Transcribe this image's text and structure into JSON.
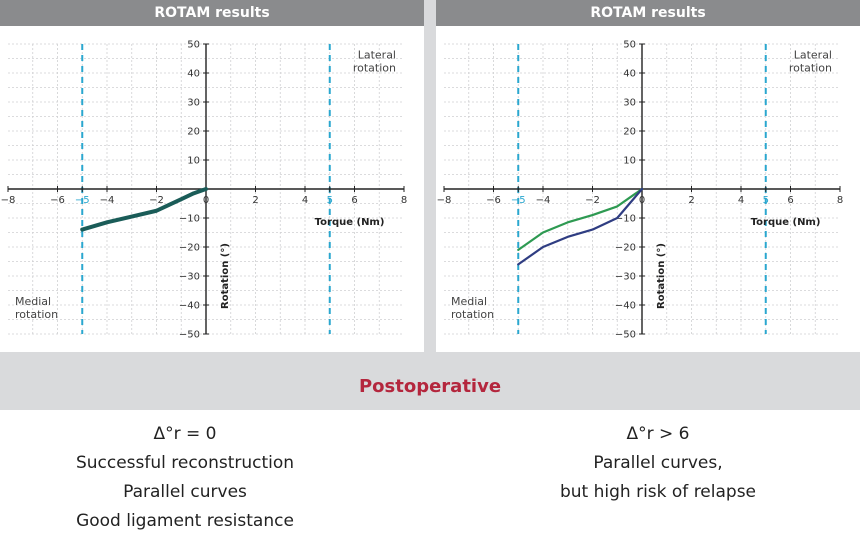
{
  "colors": {
    "header_bg": "#8a8b8d",
    "accent": "#b4263d",
    "curve_teal": "#1a5c58",
    "curve_green": "#2e9a52",
    "curve_navy": "#2f3d82",
    "dashed_line": "#2aa7cf"
  },
  "section_title": "Postoperative",
  "left_caption": {
    "line1": "Δ°r = 0",
    "line2": "Successful reconstruction",
    "line3": "Parallel curves",
    "line4": "Good ligament resistance"
  },
  "right_caption": {
    "line1": "Δ°r > 6",
    "line2": "Parallel curves,",
    "line3": "but high risk of relapse"
  },
  "chart_data": [
    {
      "type": "line",
      "title": "ROTAM results",
      "xlabel": "Torque (Nm)",
      "ylabel": "Rotation (°)",
      "xlim": [
        -8,
        8
      ],
      "ylim": [
        -50,
        50
      ],
      "x_ticks": [
        -8,
        -6,
        -5,
        -4,
        -2,
        0,
        2,
        4,
        5,
        6,
        8
      ],
      "y_ticks": [
        50,
        40,
        30,
        20,
        10,
        -10,
        -20,
        -30,
        -40,
        -50
      ],
      "grid": true,
      "annotations": [
        {
          "text": "Lateral",
          "text2": "rotation",
          "x": 5
        },
        {
          "text": "Medial",
          "text2": "rotation",
          "x": -5
        }
      ],
      "series": [
        {
          "color": "#1a5c58",
          "x": [
            -5,
            -4,
            -3,
            -2,
            -1.5,
            -1,
            -0.5,
            0
          ],
          "y": [
            -14,
            -11.5,
            -9.5,
            -7.5,
            -5.5,
            -3.5,
            -1.5,
            0
          ]
        }
      ]
    },
    {
      "type": "line",
      "title": "ROTAM results",
      "xlabel": "Torque (Nm)",
      "ylabel": "Rotation (°)",
      "xlim": [
        -8,
        8
      ],
      "ylim": [
        -50,
        50
      ],
      "x_ticks": [
        -8,
        -6,
        -5,
        -4,
        -2,
        0,
        2,
        4,
        5,
        6,
        8
      ],
      "y_ticks": [
        50,
        40,
        30,
        20,
        10,
        -10,
        -20,
        -30,
        -40,
        -50
      ],
      "grid": true,
      "annotations": [
        {
          "text": "Lateral",
          "text2": "rotation",
          "x": 5
        },
        {
          "text": "Medial",
          "text2": "rotation",
          "x": -5
        }
      ],
      "series": [
        {
          "color": "#2e9a52",
          "x": [
            -5,
            -4,
            -3,
            -2,
            -1,
            -0.5,
            0
          ],
          "y": [
            -21,
            -15,
            -11.5,
            -9,
            -6,
            -3,
            0
          ]
        },
        {
          "color": "#2f3d82",
          "x": [
            -5,
            -4,
            -3,
            -2,
            -1,
            -0.5,
            0
          ],
          "y": [
            -26,
            -20,
            -16.5,
            -14,
            -10,
            -5,
            0
          ]
        }
      ]
    }
  ]
}
